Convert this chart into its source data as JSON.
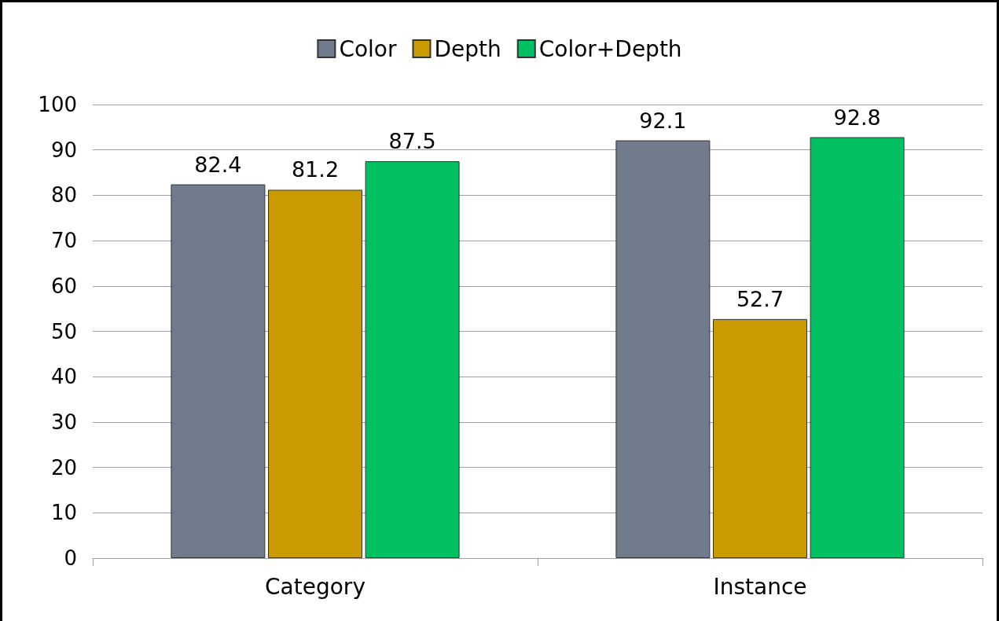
{
  "chart_data": {
    "type": "bar",
    "categories": [
      "Category",
      "Instance"
    ],
    "series": [
      {
        "name": "Color",
        "color": "#707b8c",
        "values": [
          82.4,
          92.1
        ]
      },
      {
        "name": "Depth",
        "color": "#c99b00",
        "values": [
          81.2,
          52.7
        ]
      },
      {
        "name": "Color+Depth",
        "color": "#00c062",
        "values": [
          87.5,
          92.8
        ]
      }
    ],
    "ylim": [
      0,
      100
    ],
    "yticks": [
      0,
      10,
      20,
      30,
      40,
      50,
      60,
      70,
      80,
      90,
      100
    ],
    "grid": "y",
    "legend": "top",
    "data_labels": true
  }
}
